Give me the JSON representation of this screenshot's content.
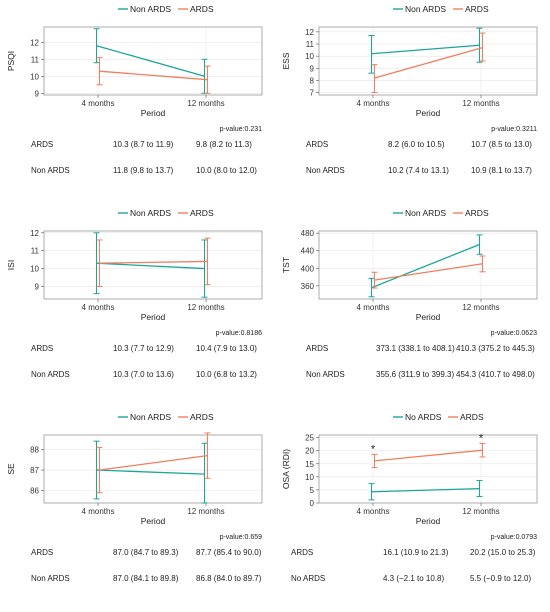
{
  "colors": {
    "ards": "#f07f5f",
    "non_ards": "#1aa69a",
    "frame": "#9a9a9a",
    "grid": "#e6e6e6"
  },
  "chart_data": [
    {
      "type": "line",
      "ylabel": "PSQI",
      "xlabel": "Period",
      "legend": [
        "Non ARDS",
        "ARDS"
      ],
      "legend_position": "top",
      "categories": [
        "4 months",
        "12 months"
      ],
      "ylim": [
        8.9,
        12.9
      ],
      "yticks": [
        9,
        10,
        11,
        12
      ],
      "series": [
        {
          "name": "Non ARDS",
          "values": [
            11.8,
            10.0
          ],
          "lower": [
            10.8,
            9.0
          ],
          "upper": [
            12.8,
            11.0
          ]
        },
        {
          "name": "ARDS",
          "values": [
            10.3,
            9.8
          ],
          "lower": [
            9.5,
            9.0
          ],
          "upper": [
            11.1,
            10.6
          ]
        }
      ],
      "p_value": "p-value:0.231",
      "table": [
        {
          "group": "ARDS",
          "values": [
            "10.3 (8.7 to 11.9)",
            "9.8 (8.2 to 11.3)"
          ]
        },
        {
          "group": "Non ARDS",
          "values": [
            "11.8 (9.8 to 13.7)",
            "10.0 (8.0 to 12.0)"
          ]
        }
      ]
    },
    {
      "type": "line",
      "ylabel": "ESS",
      "xlabel": "Period",
      "legend": [
        "Non ARDS",
        "ARDS"
      ],
      "legend_position": "top",
      "categories": [
        "4 months",
        "12 months"
      ],
      "ylim": [
        6.8,
        12.4
      ],
      "yticks": [
        7,
        8,
        9,
        10,
        11,
        12
      ],
      "series": [
        {
          "name": "Non ARDS",
          "values": [
            10.2,
            10.9
          ],
          "lower": [
            8.6,
            9.5
          ],
          "upper": [
            11.7,
            12.3
          ]
        },
        {
          "name": "ARDS",
          "values": [
            8.2,
            10.7
          ],
          "lower": [
            7.0,
            9.6
          ],
          "upper": [
            9.3,
            11.9
          ]
        }
      ],
      "p_value": "p-value:0.3211",
      "table": [
        {
          "group": "ARDS",
          "values": [
            "8.2 (6.0 to 10.5)",
            "10.7 (8.5 to 13.0)"
          ]
        },
        {
          "group": "Non ARDS",
          "values": [
            "10.2 (7.4 to 13.1)",
            "10.9 (8.1 to 13.7)"
          ]
        }
      ]
    },
    {
      "type": "line",
      "ylabel": "ISI",
      "xlabel": "Period",
      "legend": [
        "Non ARDS",
        "ARDS"
      ],
      "legend_position": "top",
      "categories": [
        "4 months",
        "12 months"
      ],
      "ylim": [
        8.3,
        12.1
      ],
      "yticks": [
        9,
        10,
        11,
        12
      ],
      "series": [
        {
          "name": "Non ARDS",
          "values": [
            10.3,
            10.0
          ],
          "lower": [
            8.6,
            8.4
          ],
          "upper": [
            12.0,
            11.6
          ]
        },
        {
          "name": "ARDS",
          "values": [
            10.3,
            10.4
          ],
          "lower": [
            9.0,
            9.1
          ],
          "upper": [
            11.6,
            11.7
          ]
        }
      ],
      "p_value": "p-value:0.8186",
      "table": [
        {
          "group": "ARDS",
          "values": [
            "10.3 (7.7 to 12.9)",
            "10.4 (7.9 to 13.0)"
          ]
        },
        {
          "group": "Non ARDS",
          "values": [
            "10.3 (7.0 to 13.6)",
            "10.0 (6.8 to 13.2)"
          ]
        }
      ]
    },
    {
      "type": "line",
      "ylabel": "TST",
      "xlabel": "Period",
      "legend": [
        "Non ARDS",
        "ARDS"
      ],
      "legend_position": "top",
      "categories": [
        "4 months",
        "12 months"
      ],
      "ylim": [
        330,
        485
      ],
      "yticks": [
        360,
        400,
        440,
        480
      ],
      "series": [
        {
          "name": "Non ARDS",
          "values": [
            355.6,
            454.3
          ],
          "lower": [
            335,
            432
          ],
          "upper": [
            377,
            476
          ]
        },
        {
          "name": "ARDS",
          "values": [
            373.1,
            410.3
          ],
          "lower": [
            355,
            392
          ],
          "upper": [
            391,
            428
          ]
        }
      ],
      "p_value": "p-value:0.0623",
      "table": [
        {
          "group": "ARDS",
          "values": [
            "373.1 (338.1 to 408.1)",
            "410.3 (375.2 to 445.3)"
          ]
        },
        {
          "group": "Non ARDS",
          "values": [
            "355.6 (311.9 to 399.3)",
            "454.3 (410.7 to 498.0)"
          ]
        }
      ]
    },
    {
      "type": "line",
      "ylabel": "SE",
      "xlabel": "Period",
      "legend": [
        "Non ARDS",
        "ARDS"
      ],
      "legend_position": "top",
      "categories": [
        "4 months",
        "12 months"
      ],
      "ylim": [
        85.4,
        88.7
      ],
      "yticks": [
        86,
        87,
        88
      ],
      "series": [
        {
          "name": "Non ARDS",
          "values": [
            87.0,
            86.8
          ],
          "lower": [
            85.6,
            85.4
          ],
          "upper": [
            88.4,
            88.3
          ]
        },
        {
          "name": "ARDS",
          "values": [
            87.0,
            87.7
          ],
          "lower": [
            85.9,
            86.6
          ],
          "upper": [
            88.1,
            88.8
          ]
        }
      ],
      "p_value": "p-value:0.659",
      "table": [
        {
          "group": "ARDS",
          "values": [
            "87.0 (84.7 to 89.3)",
            "87.7 (85.4 to 90.0)"
          ]
        },
        {
          "group": "Non ARDS",
          "values": [
            "87.0 (84.1 to 89.8)",
            "86.8 (84.0 to 89.7)"
          ]
        }
      ]
    },
    {
      "type": "line",
      "ylabel": "OSA (RDI)",
      "xlabel": "Period",
      "legend": [
        "No ARDS",
        "ARDS"
      ],
      "legend_position": "top",
      "categories": [
        "4 months",
        "12 months"
      ],
      "ylim": [
        0,
        26
      ],
      "yticks": [
        0,
        5,
        10,
        15,
        20,
        25
      ],
      "series": [
        {
          "name": "No ARDS",
          "values": [
            4.3,
            5.5
          ],
          "lower": [
            1.2,
            2.5
          ],
          "upper": [
            7.4,
            8.6
          ]
        },
        {
          "name": "ARDS",
          "values": [
            16.1,
            20.2
          ],
          "lower": [
            13.6,
            17.6
          ],
          "upper": [
            18.6,
            22.8
          ]
        }
      ],
      "annotations": [
        "*",
        "*"
      ],
      "p_value": "p-value:0.0793",
      "table": [
        {
          "group": "ARDS",
          "values": [
            "16.1 (10.9 to 21.3)",
            "20.2 (15.0 to 25.3)"
          ]
        },
        {
          "group": "No ARDS",
          "values": [
            "4.3 (−2.1 to 10.8)",
            "5.5 (−0.9 to 12.0)"
          ]
        }
      ]
    }
  ]
}
